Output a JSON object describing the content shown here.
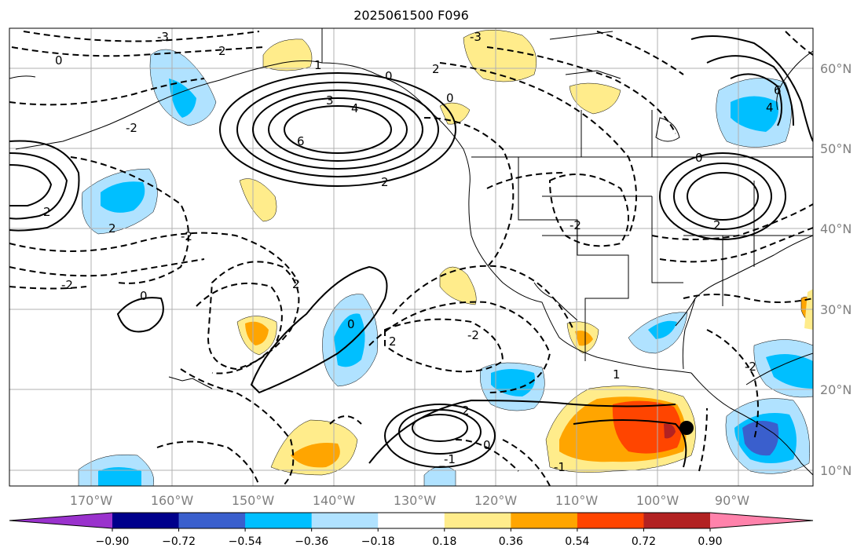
{
  "title": "2025061500 F096",
  "map": {
    "longitude_labels": [
      "170°W",
      "160°W",
      "150°W",
      "140°W",
      "130°W",
      "120°W",
      "110°W",
      "100°W",
      "90°W"
    ],
    "latitude_labels": [
      "60°N",
      "50°N",
      "40°N",
      "30°N",
      "20°N",
      "10°N"
    ],
    "contour_labels": [
      "-3",
      "1",
      "2",
      "0",
      "3",
      "4",
      "6",
      "-2",
      "0",
      "2",
      "-2",
      "0",
      "2",
      "-2",
      "2",
      "0",
      "2",
      "-1",
      "1",
      "-2",
      "0",
      "2",
      "-3",
      "0",
      "2",
      "4",
      "6",
      "-2",
      "2",
      "0",
      "-1",
      "-2",
      "2"
    ],
    "marker": "storm-center-dot"
  },
  "colorbar": {
    "ticks": [
      "−0.90",
      "−0.72",
      "−0.54",
      "−0.36",
      "−0.18",
      "0.18",
      "0.36",
      "0.54",
      "0.72",
      "0.90"
    ],
    "colors": [
      "#9a32cd",
      "#00008b",
      "#3a5fcd",
      "#00bfff",
      "#b0e2ff",
      "#ffffff",
      "#ffec8b",
      "#ffa500",
      "#ff4500",
      "#b22222",
      "#ff82ab"
    ]
  }
}
